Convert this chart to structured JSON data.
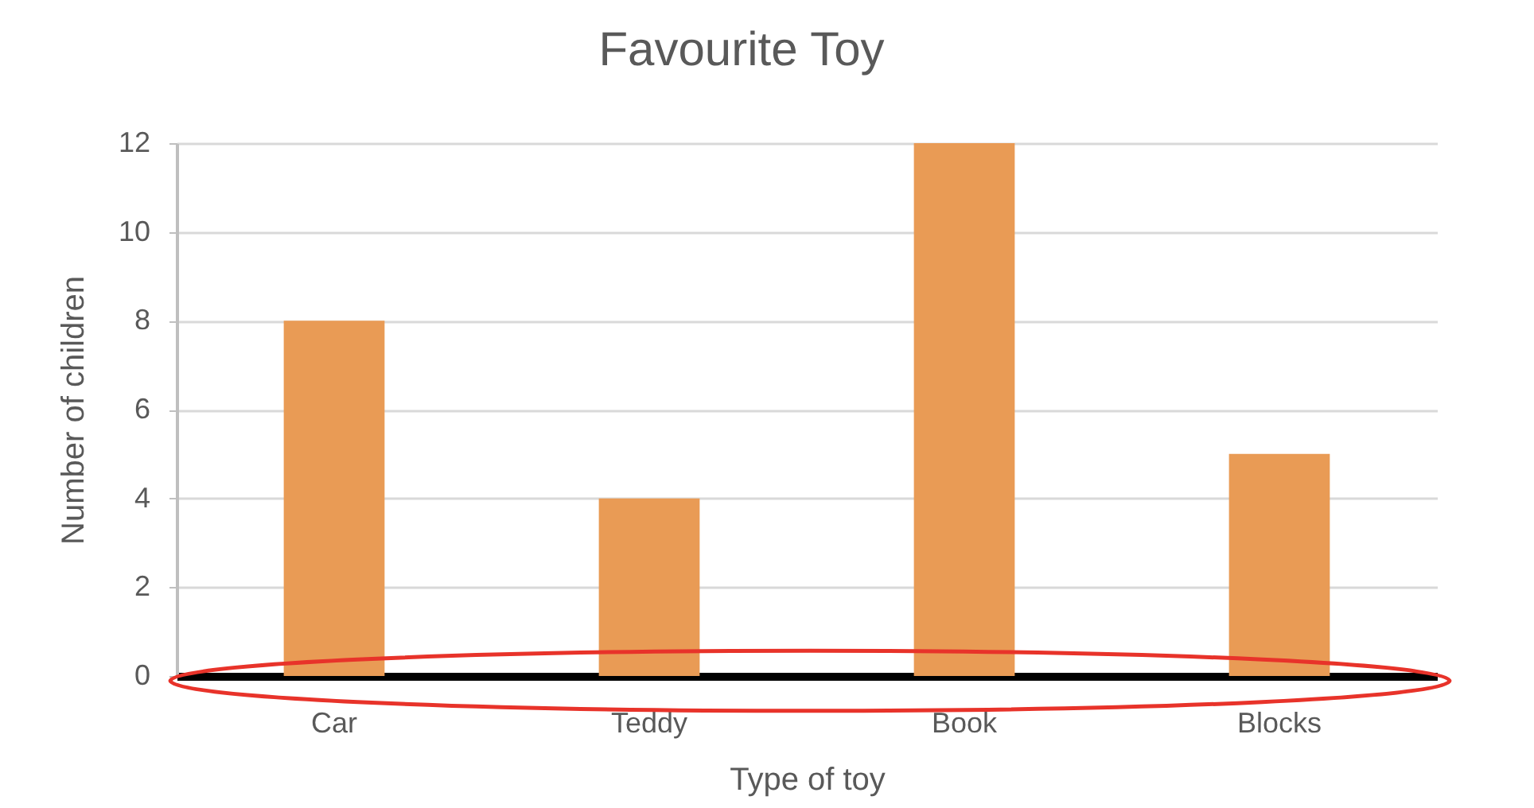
{
  "chart_data": {
    "type": "bar",
    "title": "Favourite Toy",
    "xlabel": "Type of toy",
    "ylabel": "Number of children",
    "categories": [
      "Car",
      "Teddy",
      "Book",
      "Blocks"
    ],
    "values": [
      8,
      4,
      12,
      5
    ],
    "color": "#e99b55",
    "ylim": [
      0,
      12
    ],
    "yticks": [
      0,
      2,
      4,
      6,
      8,
      10,
      12
    ],
    "grid": "y"
  }
}
